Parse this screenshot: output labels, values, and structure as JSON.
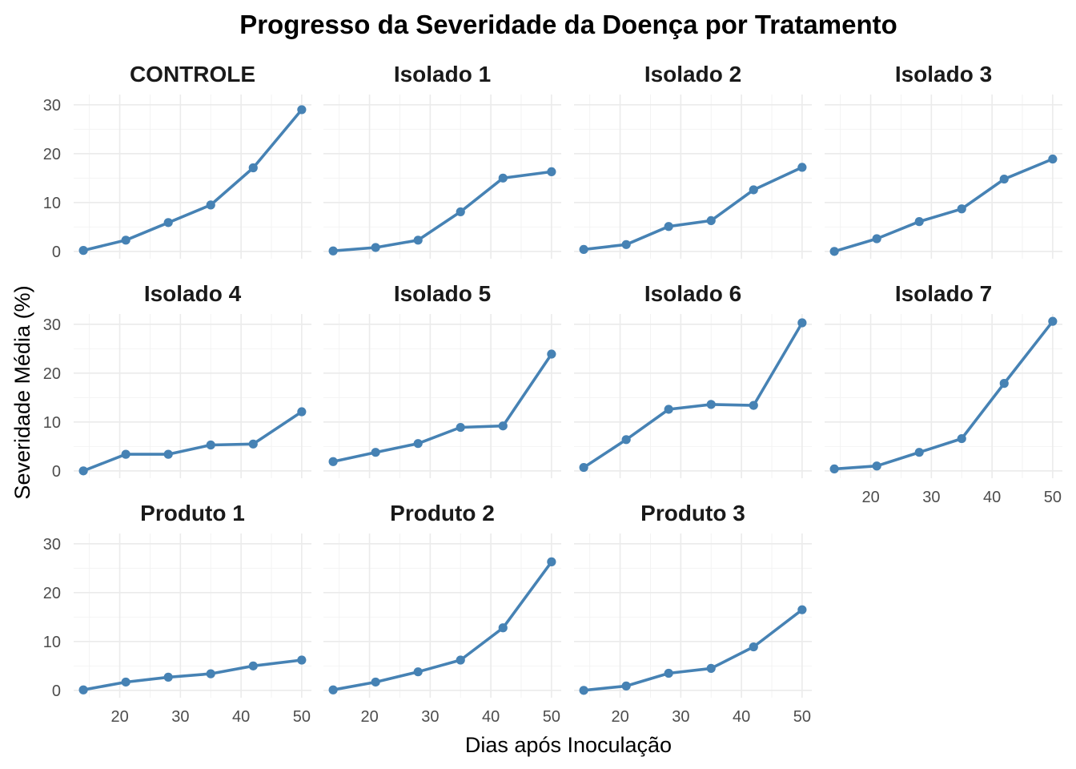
{
  "chart_data": {
    "type": "line",
    "title": "Progresso da Severidade da Doença por Tratamento",
    "xlabel": "Dias após Inoculação",
    "ylabel": "Severidade Média (%)",
    "x": [
      14,
      21,
      28,
      35,
      42,
      50
    ],
    "xlim": [
      12.4,
      51.6
    ],
    "ylim": [
      -1.5,
      32.1
    ],
    "x_ticks": [
      20,
      30,
      40,
      50
    ],
    "y_ticks": [
      0,
      10,
      20,
      30
    ],
    "grid": true,
    "legend": "none",
    "line_color": "#4682B4",
    "facet_layout": {
      "columns": 4,
      "rows": 3
    },
    "series": [
      {
        "name": "CONTROLE",
        "values": [
          0.2,
          2.3,
          5.9,
          9.5,
          17.1,
          29.0
        ]
      },
      {
        "name": "Isolado 1",
        "values": [
          0.1,
          0.8,
          2.3,
          8.1,
          15.0,
          16.3
        ]
      },
      {
        "name": "Isolado 2",
        "values": [
          0.4,
          1.4,
          5.1,
          6.3,
          12.6,
          17.2
        ]
      },
      {
        "name": "Isolado 3",
        "values": [
          0.0,
          2.6,
          6.1,
          8.7,
          14.8,
          18.9
        ]
      },
      {
        "name": "Isolado 4",
        "values": [
          0.0,
          3.4,
          3.4,
          5.3,
          5.5,
          12.1
        ]
      },
      {
        "name": "Isolado 5",
        "values": [
          1.9,
          3.8,
          5.6,
          8.9,
          9.2,
          23.9
        ]
      },
      {
        "name": "Isolado 6",
        "values": [
          0.7,
          6.4,
          12.6,
          13.6,
          13.4,
          30.3
        ]
      },
      {
        "name": "Isolado 7",
        "values": [
          0.4,
          1.0,
          3.8,
          6.6,
          17.9,
          30.6
        ]
      },
      {
        "name": "Produto 1",
        "values": [
          0.1,
          1.7,
          2.7,
          3.4,
          5.0,
          6.2
        ]
      },
      {
        "name": "Produto 2",
        "values": [
          0.1,
          1.7,
          3.8,
          6.2,
          12.8,
          26.3
        ]
      },
      {
        "name": "Produto 3",
        "values": [
          0.0,
          0.9,
          3.5,
          4.5,
          8.9,
          16.5
        ]
      }
    ]
  }
}
